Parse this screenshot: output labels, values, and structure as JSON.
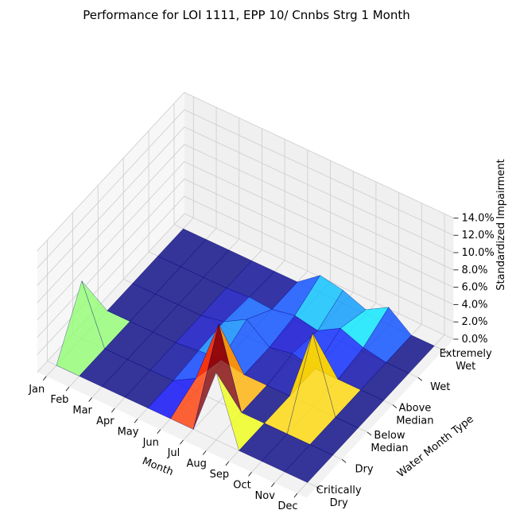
{
  "chart_data": {
    "type": "3d-surface",
    "title": "Performance for LOI 1111, EPP 10/ Cnnbs Strg 1 Month",
    "xlabel": "Month",
    "ylabel": "Water Month Type",
    "zlabel": "Standardized Impairment",
    "x_categories": [
      "Jan",
      "Feb",
      "Mar",
      "Apr",
      "May",
      "Jun",
      "Jul",
      "Aug",
      "Sep",
      "Oct",
      "Nov",
      "Dec"
    ],
    "y_categories": [
      "Critically Dry",
      "Dry",
      "Below Median",
      "Above Median",
      "Wet",
      "Extremely Wet"
    ],
    "y_tick_lines": [
      [
        "Critically",
        "Dry"
      ],
      [
        "Dry"
      ],
      [
        "Below",
        "Median"
      ],
      [
        "Above",
        "Median"
      ],
      [
        "Wet"
      ],
      [
        "Extremely",
        "Wet"
      ]
    ],
    "z_ticks": [
      "0.0%",
      "2.0%",
      "4.0%",
      "6.0%",
      "8.0%",
      "10.0%",
      "12.0%",
      "14.0%"
    ],
    "zlim": [
      0,
      14
    ],
    "z_unit": "percent",
    "colormap": "jet",
    "grid": true,
    "z_values_by_water_type": [
      [
        0.0,
        0.0,
        0.0,
        0.0,
        0.0,
        0.0,
        0.0,
        7.8,
        0.0,
        0.0,
        0.0,
        0.0
      ],
      [
        6.6,
        0.0,
        0.0,
        0.0,
        0.0,
        1.5,
        9.0,
        0.0,
        0.0,
        0.0,
        0.0,
        0.0
      ],
      [
        0.0,
        0.0,
        0.0,
        0.0,
        0.3,
        0.5,
        0.0,
        0.0,
        0.0,
        8.5,
        0.0,
        0.0
      ],
      [
        0.0,
        0.0,
        0.0,
        0.0,
        0.5,
        2.0,
        0.0,
        0.5,
        0.0,
        0.0,
        0.0,
        0.0
      ],
      [
        0.0,
        0.0,
        0.0,
        0.0,
        0.2,
        0.0,
        0.5,
        0.0,
        1.5,
        0.5,
        0.0,
        0.0
      ],
      [
        0.0,
        0.0,
        0.0,
        0.0,
        0.0,
        0.0,
        2.0,
        1.5,
        0.5,
        2.0,
        0.0,
        0.0
      ]
    ]
  }
}
